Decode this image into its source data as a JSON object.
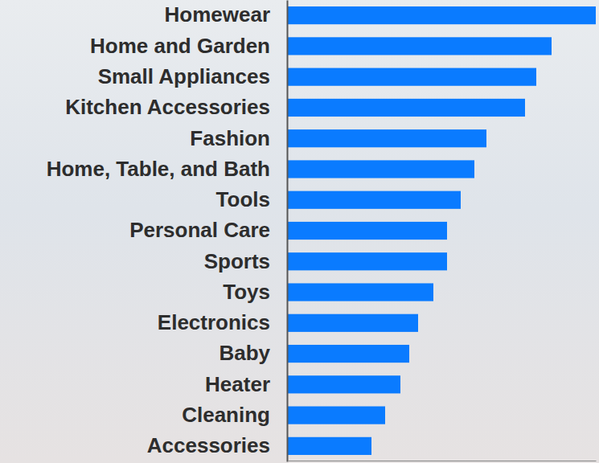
{
  "chart_data": {
    "type": "bar",
    "orientation": "horizontal",
    "tick_labels": "y",
    "categories": [
      "Homewear",
      "Home and Garden",
      "Small Appliances",
      "Kitchen Accessories",
      "Fashion",
      "Home, Table, and Bath",
      "Tools",
      "Personal Care",
      "Sports",
      "Toys",
      "Electronics",
      "Baby",
      "Heater",
      "Cleaning",
      "Accessories"
    ],
    "values": [
      383,
      328,
      309,
      295,
      247,
      232,
      215,
      198,
      198,
      181,
      162,
      151,
      140,
      121,
      104
    ],
    "color": "#0a7bff",
    "xlim": [
      0,
      383
    ]
  }
}
